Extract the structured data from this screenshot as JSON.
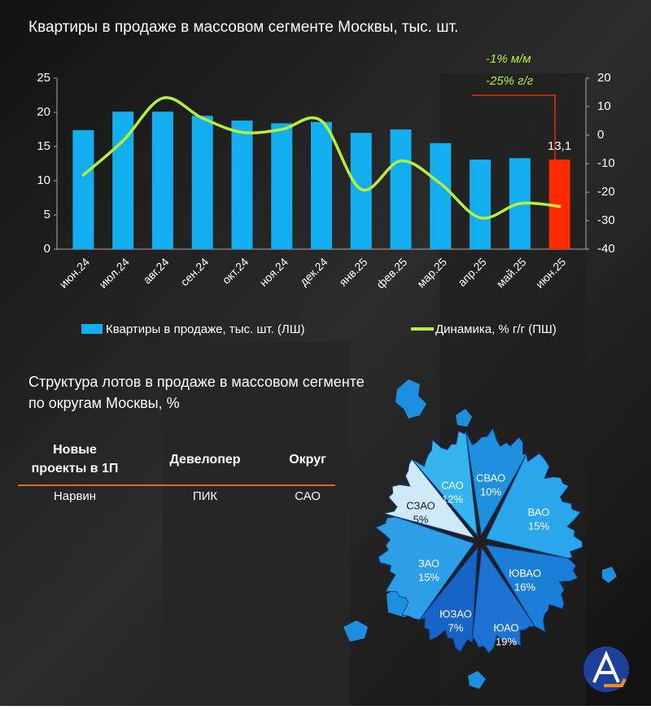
{
  "chart_data": {
    "type": "bar-line",
    "title": "Квартиры в продаже  в массовом сегменте Москвы,  тыс. шт.",
    "categories": [
      "июн.24",
      "июл.24",
      "авг.24",
      "сен.24",
      "окт.24",
      "ноя.24",
      "дек.24",
      "янв.25",
      "фев.25",
      "мар.25",
      "апр.25",
      "май.25",
      "июн.25"
    ],
    "series": [
      {
        "name": "Квартиры в продаже, тыс. шт. (ЛШ)",
        "type": "bar",
        "color": "#12aef0",
        "colors": [
          "#12aef0",
          "#12aef0",
          "#12aef0",
          "#12aef0",
          "#12aef0",
          "#12aef0",
          "#12aef0",
          "#12aef0",
          "#12aef0",
          "#12aef0",
          "#12aef0",
          "#12aef0",
          "#ff2a00"
        ],
        "values": [
          17.4,
          20.1,
          20.1,
          19.5,
          18.8,
          18.4,
          18.6,
          17.0,
          17.5,
          15.5,
          13.1,
          13.3,
          13.1
        ],
        "value_labels": [
          null,
          null,
          null,
          null,
          null,
          null,
          null,
          null,
          null,
          null,
          null,
          null,
          "13,1"
        ]
      },
      {
        "name": "Динамика, % г/г (ПШ)",
        "type": "line",
        "axis": "y2",
        "color": "#b5f03a",
        "values": [
          -14,
          -2,
          13,
          6,
          1,
          2,
          5,
          -19,
          -9,
          -17,
          -29,
          -24,
          -25
        ]
      }
    ],
    "annotations": [
      "-1% м/м",
      "-25% г/г"
    ],
    "ylim": [
      0,
      25
    ],
    "yticks": [
      0,
      5,
      10,
      15,
      20,
      25
    ],
    "y2lim": [
      -40,
      20
    ],
    "y2ticks": [
      -40,
      -30,
      -20,
      -10,
      0,
      10,
      20
    ],
    "grid": false,
    "legend": "bottom"
  },
  "table": {
    "columns": [
      "Новые проекты в 1П",
      "Девелопер",
      "Округ"
    ],
    "rows": [
      [
        "Нарвин",
        "ПИК",
        "САО"
      ]
    ]
  },
  "map": {
    "title": "Структура  лотов  в продаже  в массовом сегменте  по  округам Москвы, %",
    "districts": [
      {
        "name": "СЗАО",
        "value": 5,
        "label": "5%",
        "color": "#cfe9f8"
      },
      {
        "name": "САО",
        "value": 12,
        "label": "12%",
        "color": "#36b4ef"
      },
      {
        "name": "СВАО",
        "value": 10,
        "label": "10%",
        "color": "#1f90de"
      },
      {
        "name": "ВАО",
        "value": 15,
        "label": "15%",
        "color": "#2aa6ec"
      },
      {
        "name": "ЮВАО",
        "value": 16,
        "label": "16%",
        "color": "#1b7fd8"
      },
      {
        "name": "ЮАО",
        "value": 19,
        "label": "19%",
        "color": "#1d72d2"
      },
      {
        "name": "ЮЗАО",
        "value": 7,
        "label": "7%",
        "color": "#1664c6"
      },
      {
        "name": "ЗАО",
        "value": 15,
        "label": "15%",
        "color": "#2d9fe8"
      }
    ]
  }
}
